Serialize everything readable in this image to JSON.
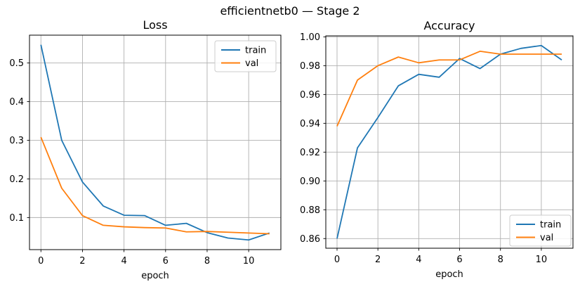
{
  "figure": {
    "suptitle": "efficientnetb0 — Stage 2",
    "background": "#ffffff"
  },
  "colors": {
    "series": {
      "train": "#1f77b4",
      "val": "#ff7f0e"
    },
    "grid": "#b0b0b0",
    "spine": "#000000",
    "text": "#000000",
    "legend_border": "#cccccc",
    "legend_fill": "rgba(255,255,255,0.85)"
  },
  "chart_data": [
    {
      "type": "line",
      "title": "Loss",
      "xlabel": "epoch",
      "x": [
        0,
        1,
        2,
        3,
        4,
        5,
        6,
        7,
        8,
        9,
        10,
        11
      ],
      "series": [
        {
          "name": "train",
          "values": [
            0.547,
            0.3,
            0.192,
            0.13,
            0.106,
            0.105,
            0.08,
            0.085,
            0.061,
            0.047,
            0.042,
            0.06
          ]
        },
        {
          "name": "val",
          "values": [
            0.308,
            0.176,
            0.105,
            0.08,
            0.076,
            0.074,
            0.073,
            0.063,
            0.064,
            0.062,
            0.06,
            0.058
          ]
        }
      ],
      "xlim": [
        -0.55,
        11.55
      ],
      "ylim": [
        0.017,
        0.572
      ],
      "xticks": [
        0,
        2,
        4,
        6,
        8,
        10
      ],
      "xtick_labels": [
        "0",
        "2",
        "4",
        "6",
        "8",
        "10"
      ],
      "yticks": [
        0.1,
        0.2,
        0.3,
        0.4,
        0.5
      ],
      "ytick_labels": [
        "0.1",
        "0.2",
        "0.3",
        "0.4",
        "0.5"
      ],
      "grid": true,
      "legend_position": "upper right",
      "legend_entries": [
        "train",
        "val"
      ]
    },
    {
      "type": "line",
      "title": "Accuracy",
      "xlabel": "epoch",
      "x": [
        0,
        1,
        2,
        3,
        4,
        5,
        6,
        7,
        8,
        9,
        10,
        11
      ],
      "series": [
        {
          "name": "train",
          "values": [
            0.86,
            0.923,
            0.944,
            0.966,
            0.974,
            0.972,
            0.985,
            0.978,
            0.988,
            0.992,
            0.994,
            0.984
          ]
        },
        {
          "name": "val",
          "values": [
            0.938,
            0.97,
            0.98,
            0.986,
            0.982,
            0.984,
            0.984,
            0.99,
            0.988,
            0.988,
            0.988,
            0.988
          ]
        }
      ],
      "xlim": [
        -0.55,
        11.55
      ],
      "ylim": [
        0.8533,
        1.0007
      ],
      "xticks": [
        0,
        2,
        4,
        6,
        8,
        10
      ],
      "xtick_labels": [
        "0",
        "2",
        "4",
        "6",
        "8",
        "10"
      ],
      "yticks": [
        0.86,
        0.88,
        0.9,
        0.92,
        0.94,
        0.96,
        0.98,
        1.0
      ],
      "ytick_labels": [
        "0.86",
        "0.88",
        "0.90",
        "0.92",
        "0.94",
        "0.96",
        "0.98",
        "1.00"
      ],
      "grid": true,
      "legend_position": "lower right",
      "legend_entries": [
        "train",
        "val"
      ]
    }
  ]
}
